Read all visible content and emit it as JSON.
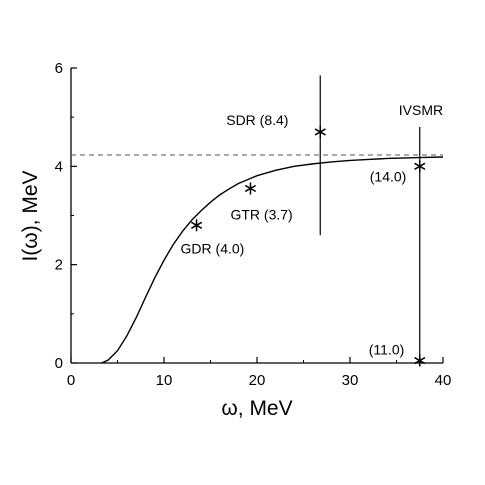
{
  "chart_data": {
    "type": "line",
    "title": "",
    "xlabel": "ω, MeV",
    "ylabel": "I(ω), MeV",
    "xlim": [
      0,
      40
    ],
    "ylim": [
      0,
      6
    ],
    "x_ticks": [
      "0",
      "10",
      "20",
      "30",
      "40"
    ],
    "y_ticks": [
      "0",
      "2",
      "4",
      "6"
    ],
    "grid": false,
    "legend": "none",
    "series": [
      {
        "type": "line",
        "style": "solid",
        "x": [
          3.3,
          4,
          5,
          6,
          7,
          8,
          9,
          10,
          11,
          12,
          13,
          14,
          15,
          16,
          17,
          18,
          19,
          20,
          22,
          24,
          26,
          28,
          30,
          32,
          34,
          36,
          38,
          40
        ],
        "y": [
          0.0,
          0.06,
          0.25,
          0.55,
          0.92,
          1.33,
          1.73,
          2.09,
          2.41,
          2.68,
          2.91,
          3.1,
          3.27,
          3.42,
          3.54,
          3.65,
          3.73,
          3.81,
          3.92,
          4.0,
          4.05,
          4.09,
          4.12,
          4.14,
          4.16,
          4.17,
          4.18,
          4.19
        ]
      },
      {
        "type": "reference-line",
        "style": "dashed",
        "y": 4.23,
        "x": [
          0,
          40
        ]
      }
    ],
    "points": [
      {
        "label": "GDR (4.0)",
        "x": 13.5,
        "y": 2.8
      },
      {
        "label": "GTR (3.7)",
        "x": 19.3,
        "y": 3.55
      },
      {
        "label": "SDR (8.4)",
        "x": 26.8,
        "y": 4.7
      },
      {
        "label": "(14.0)",
        "x": 37.5,
        "y": 4.0
      },
      {
        "label": "(11.0)",
        "x": 37.5,
        "y": 0.05
      }
    ],
    "vertical_lines": [
      {
        "x": 26.8,
        "y_from": 2.6,
        "y_to": 5.85
      },
      {
        "x": 37.5,
        "y_from": 0.0,
        "y_to": 4.8,
        "label": "IVSMR"
      }
    ]
  }
}
